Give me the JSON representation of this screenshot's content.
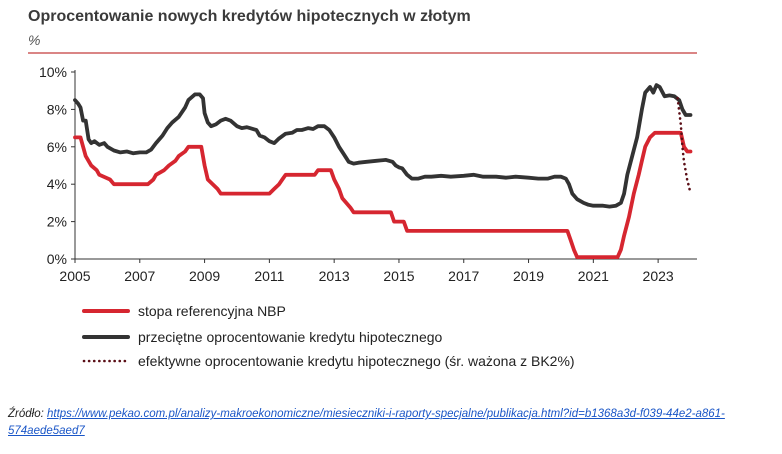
{
  "chart_data": {
    "type": "line",
    "title": "Oprocentowanie nowych kredytów hipotecznych w złotym",
    "ylabel": "%",
    "xlabel": "",
    "xlim": [
      2005,
      2024.2
    ],
    "ylim": [
      0,
      10
    ],
    "x_ticks": [
      "2005",
      "2007",
      "2009",
      "2011",
      "2013",
      "2015",
      "2017",
      "2019",
      "2021",
      "2023"
    ],
    "y_ticks": [
      "0%",
      "2%",
      "4%",
      "6%",
      "8%",
      "10%"
    ],
    "grid": false,
    "legend_position": "bottom",
    "series": [
      {
        "name": "stopa referencyjna NBP",
        "color": "#d62630",
        "style": "solid",
        "points": [
          [
            2005.0,
            6.5
          ],
          [
            2005.17,
            6.5
          ],
          [
            2005.25,
            6.0
          ],
          [
            2005.33,
            5.5
          ],
          [
            2005.5,
            5.0
          ],
          [
            2005.67,
            4.75
          ],
          [
            2005.75,
            4.5
          ],
          [
            2006.08,
            4.25
          ],
          [
            2006.2,
            4.0
          ],
          [
            2007.25,
            4.0
          ],
          [
            2007.42,
            4.25
          ],
          [
            2007.5,
            4.5
          ],
          [
            2007.75,
            4.75
          ],
          [
            2007.9,
            5.0
          ],
          [
            2008.1,
            5.25
          ],
          [
            2008.2,
            5.5
          ],
          [
            2008.4,
            5.75
          ],
          [
            2008.5,
            6.0
          ],
          [
            2008.9,
            6.0
          ],
          [
            2009.0,
            5.0
          ],
          [
            2009.1,
            4.25
          ],
          [
            2009.25,
            4.0
          ],
          [
            2009.4,
            3.75
          ],
          [
            2009.5,
            3.5
          ],
          [
            2011.0,
            3.5
          ],
          [
            2011.15,
            3.75
          ],
          [
            2011.3,
            4.0
          ],
          [
            2011.4,
            4.25
          ],
          [
            2011.5,
            4.5
          ],
          [
            2012.4,
            4.5
          ],
          [
            2012.5,
            4.75
          ],
          [
            2012.9,
            4.75
          ],
          [
            2013.0,
            4.25
          ],
          [
            2013.15,
            3.75
          ],
          [
            2013.25,
            3.25
          ],
          [
            2013.5,
            2.75
          ],
          [
            2013.6,
            2.5
          ],
          [
            2014.75,
            2.5
          ],
          [
            2014.85,
            2.0
          ],
          [
            2015.15,
            2.0
          ],
          [
            2015.25,
            1.5
          ],
          [
            2020.2,
            1.5
          ],
          [
            2020.3,
            1.0
          ],
          [
            2020.4,
            0.5
          ],
          [
            2020.5,
            0.1
          ],
          [
            2021.75,
            0.1
          ],
          [
            2021.85,
            0.5
          ],
          [
            2021.95,
            1.25
          ],
          [
            2022.1,
            2.25
          ],
          [
            2022.25,
            3.5
          ],
          [
            2022.4,
            4.5
          ],
          [
            2022.5,
            5.25
          ],
          [
            2022.6,
            6.0
          ],
          [
            2022.75,
            6.5
          ],
          [
            2022.9,
            6.75
          ],
          [
            2023.7,
            6.75
          ],
          [
            2023.8,
            6.0
          ],
          [
            2023.9,
            5.75
          ],
          [
            2024.0,
            5.75
          ]
        ]
      },
      {
        "name": "przeciętne oprocentowanie kredytu hipotecznego",
        "color": "#333333",
        "style": "solid",
        "points": [
          [
            2005.0,
            8.5
          ],
          [
            2005.1,
            8.3
          ],
          [
            2005.17,
            8.1
          ],
          [
            2005.25,
            7.4
          ],
          [
            2005.33,
            7.4
          ],
          [
            2005.42,
            6.4
          ],
          [
            2005.5,
            6.2
          ],
          [
            2005.6,
            6.3
          ],
          [
            2005.75,
            6.1
          ],
          [
            2005.9,
            6.2
          ],
          [
            2006.0,
            6.0
          ],
          [
            2006.2,
            5.8
          ],
          [
            2006.4,
            5.7
          ],
          [
            2006.6,
            5.75
          ],
          [
            2006.8,
            5.65
          ],
          [
            2007.0,
            5.7
          ],
          [
            2007.2,
            5.7
          ],
          [
            2007.35,
            5.85
          ],
          [
            2007.5,
            6.2
          ],
          [
            2007.7,
            6.6
          ],
          [
            2007.85,
            7.0
          ],
          [
            2008.0,
            7.3
          ],
          [
            2008.2,
            7.6
          ],
          [
            2008.4,
            8.1
          ],
          [
            2008.5,
            8.5
          ],
          [
            2008.7,
            8.8
          ],
          [
            2008.85,
            8.8
          ],
          [
            2008.95,
            8.6
          ],
          [
            2009.0,
            7.8
          ],
          [
            2009.1,
            7.3
          ],
          [
            2009.2,
            7.1
          ],
          [
            2009.35,
            7.2
          ],
          [
            2009.5,
            7.4
          ],
          [
            2009.65,
            7.5
          ],
          [
            2009.8,
            7.4
          ],
          [
            2010.0,
            7.1
          ],
          [
            2010.15,
            7.0
          ],
          [
            2010.3,
            7.05
          ],
          [
            2010.4,
            7.0
          ],
          [
            2010.6,
            6.9
          ],
          [
            2010.7,
            6.6
          ],
          [
            2010.85,
            6.5
          ],
          [
            2011.0,
            6.3
          ],
          [
            2011.15,
            6.2
          ],
          [
            2011.3,
            6.45
          ],
          [
            2011.5,
            6.7
          ],
          [
            2011.7,
            6.75
          ],
          [
            2011.85,
            6.9
          ],
          [
            2012.0,
            6.9
          ],
          [
            2012.2,
            7.0
          ],
          [
            2012.35,
            6.95
          ],
          [
            2012.5,
            7.1
          ],
          [
            2012.7,
            7.1
          ],
          [
            2012.85,
            6.9
          ],
          [
            2013.0,
            6.5
          ],
          [
            2013.15,
            6.0
          ],
          [
            2013.3,
            5.6
          ],
          [
            2013.45,
            5.2
          ],
          [
            2013.6,
            5.1
          ],
          [
            2013.75,
            5.15
          ],
          [
            2014.0,
            5.2
          ],
          [
            2014.3,
            5.25
          ],
          [
            2014.6,
            5.3
          ],
          [
            2014.8,
            5.2
          ],
          [
            2014.9,
            5.0
          ],
          [
            2015.0,
            4.9
          ],
          [
            2015.1,
            4.85
          ],
          [
            2015.25,
            4.5
          ],
          [
            2015.4,
            4.3
          ],
          [
            2015.6,
            4.3
          ],
          [
            2015.8,
            4.4
          ],
          [
            2016.0,
            4.4
          ],
          [
            2016.3,
            4.45
          ],
          [
            2016.6,
            4.4
          ],
          [
            2017.0,
            4.45
          ],
          [
            2017.3,
            4.5
          ],
          [
            2017.6,
            4.4
          ],
          [
            2018.0,
            4.4
          ],
          [
            2018.3,
            4.35
          ],
          [
            2018.6,
            4.4
          ],
          [
            2019.0,
            4.35
          ],
          [
            2019.3,
            4.3
          ],
          [
            2019.6,
            4.3
          ],
          [
            2019.8,
            4.4
          ],
          [
            2020.0,
            4.4
          ],
          [
            2020.15,
            4.3
          ],
          [
            2020.25,
            4.0
          ],
          [
            2020.35,
            3.5
          ],
          [
            2020.5,
            3.2
          ],
          [
            2020.7,
            3.0
          ],
          [
            2020.85,
            2.9
          ],
          [
            2021.0,
            2.85
          ],
          [
            2021.3,
            2.85
          ],
          [
            2021.5,
            2.8
          ],
          [
            2021.7,
            2.85
          ],
          [
            2021.85,
            3.0
          ],
          [
            2021.95,
            3.5
          ],
          [
            2022.05,
            4.5
          ],
          [
            2022.2,
            5.5
          ],
          [
            2022.35,
            6.5
          ],
          [
            2022.5,
            8.0
          ],
          [
            2022.6,
            8.9
          ],
          [
            2022.75,
            9.2
          ],
          [
            2022.85,
            8.9
          ],
          [
            2022.95,
            9.3
          ],
          [
            2023.05,
            9.2
          ],
          [
            2023.2,
            8.7
          ],
          [
            2023.35,
            8.75
          ],
          [
            2023.5,
            8.7
          ],
          [
            2023.65,
            8.5
          ],
          [
            2023.75,
            8.0
          ],
          [
            2023.85,
            7.7
          ],
          [
            2024.0,
            7.7
          ]
        ]
      },
      {
        "name": "efektywne oprocentowanie kredytu hipotecznego (śr. ważona z BK2%)",
        "color": "#5a0e16",
        "style": "dotted",
        "points": [
          [
            2023.6,
            8.6
          ],
          [
            2023.7,
            7.2
          ],
          [
            2023.75,
            6.0
          ],
          [
            2023.8,
            5.2
          ],
          [
            2023.85,
            4.7
          ],
          [
            2023.9,
            4.2
          ],
          [
            2023.95,
            3.9
          ],
          [
            2024.0,
            3.5
          ]
        ]
      }
    ]
  },
  "source": {
    "label": "Źródło:",
    "url_text": "https://www.pekao.com.pl/analizy-makroekonomiczne/miesieczniki-i-raporty-specjalne/publikacja.html?id=b1368a3d-f039-44e2-a861-574aede5aed7"
  }
}
